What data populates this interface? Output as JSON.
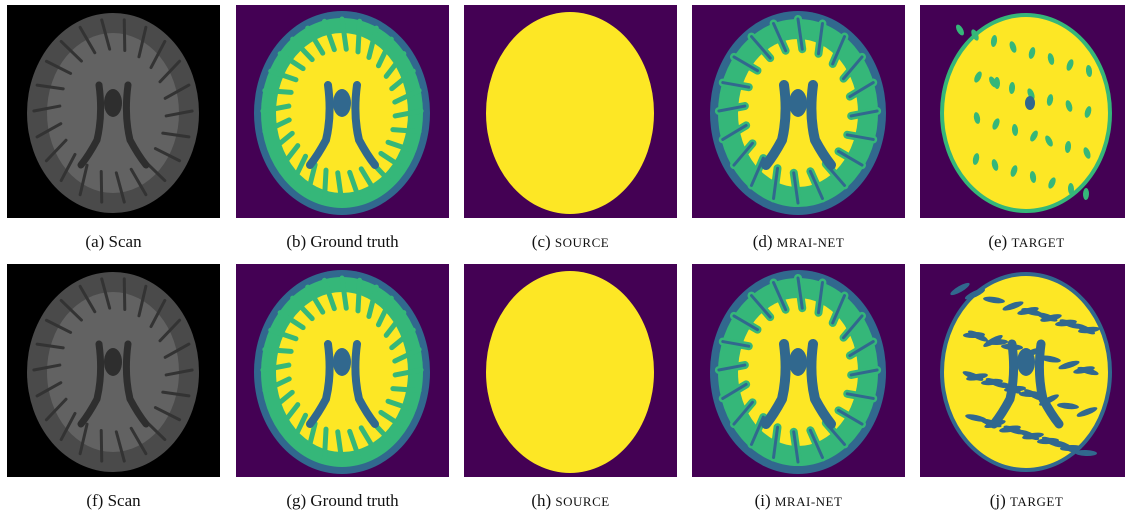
{
  "figure": {
    "panels": [
      {
        "label": "(a)",
        "caption": "Scan"
      },
      {
        "label": "(b)",
        "caption": "Ground truth"
      },
      {
        "label": "(c)",
        "caption": "SOURCE"
      },
      {
        "label": "(d)",
        "caption": "MRAI-NET"
      },
      {
        "label": "(e)",
        "caption": "TARGET"
      },
      {
        "label": "(f)",
        "caption": "Scan"
      },
      {
        "label": "(g)",
        "caption": "Ground truth"
      },
      {
        "label": "(h)",
        "caption": "SOURCE"
      },
      {
        "label": "(i)",
        "caption": "MRAI-NET"
      },
      {
        "label": "(j)",
        "caption": "TARGET"
      }
    ]
  }
}
